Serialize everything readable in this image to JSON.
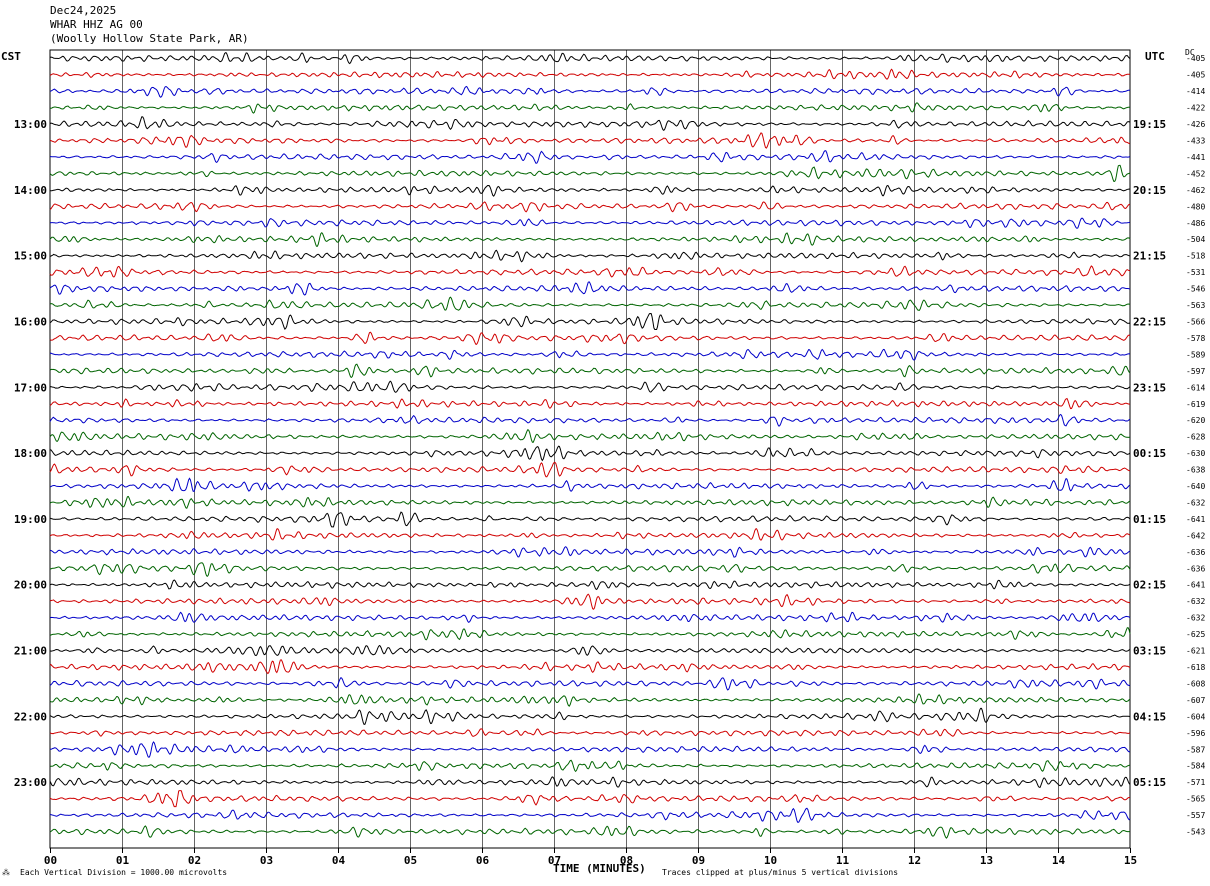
{
  "header": {
    "date": "Dec24,2025",
    "station": "WHAR HHZ AG 00",
    "location": "(Woolly Hollow State Park, AR)"
  },
  "axes": {
    "left_tz": "CST",
    "right_tz": "UTC",
    "dc_label": "DC"
  },
  "footer": {
    "scale": "Each Vertical Division = 1000.00 microvolts",
    "xlabel": "TIME (MINUTES)",
    "clip_note": "Traces clipped at plus/minus 5 vertical divisions"
  },
  "colors": {
    "trace_cycle": [
      "#000000",
      "#d00000",
      "#0000c8",
      "#006400"
    ],
    "grid": "#000000"
  },
  "chart_data": {
    "type": "line",
    "title": "Dec24,2025 WHAR HHZ AG 00 (Woolly Hollow State Park, AR)",
    "xlabel": "TIME (MINUTES)",
    "xlim": [
      0,
      15
    ],
    "x_ticks": [
      "00",
      "01",
      "02",
      "03",
      "04",
      "05",
      "06",
      "07",
      "08",
      "09",
      "10",
      "11",
      "12",
      "13",
      "14",
      "15"
    ],
    "grid": true,
    "rows_per_hour": 4,
    "left_hour_labels": [
      "13:00",
      "14:00",
      "15:00",
      "16:00",
      "17:00",
      "18:00",
      "19:00",
      "20:00",
      "21:00",
      "22:00",
      "23:00"
    ],
    "right_hour_labels": [
      "19:15",
      "20:15",
      "21:15",
      "22:15",
      "23:15",
      "00:15",
      "01:15",
      "02:15",
      "03:15",
      "04:15",
      "05:15"
    ],
    "dc_offsets": [
      -405,
      -405,
      -414,
      -422,
      -426,
      -433,
      -441,
      -452,
      -462,
      -480,
      -486,
      -504,
      -518,
      -531,
      -546,
      -563,
      -566,
      -578,
      -589,
      -597,
      -614,
      -619,
      -620,
      -628,
      -630,
      -638,
      -640,
      -632,
      -641,
      -642,
      -636,
      -636,
      -641,
      -632,
      -632,
      -625,
      -621,
      -618,
      -608,
      -607,
      -604,
      -596,
      -587,
      -584,
      -571,
      -565,
      -557,
      -543
    ]
  }
}
